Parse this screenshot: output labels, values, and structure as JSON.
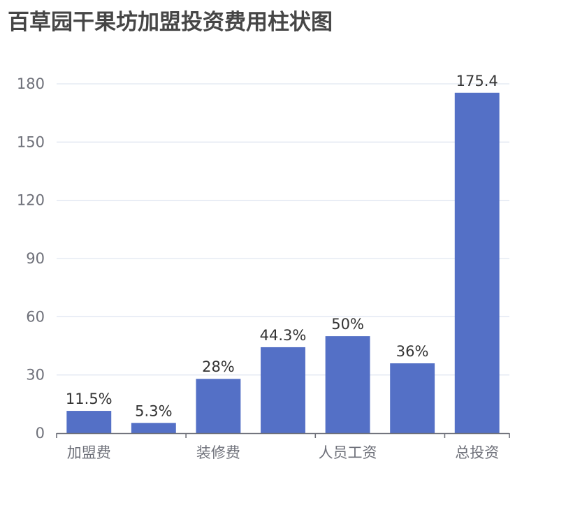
{
  "title": "百草园干果坊加盟投资费用柱状图",
  "colors": {
    "bar": "#5470c6",
    "grid": "#e0e6f1",
    "axis": "#6e7079",
    "title": "#464646",
    "label": "#333333"
  },
  "chart_data": {
    "type": "bar",
    "title": "百草园干果坊加盟投资费用柱状图",
    "xlabel": "",
    "ylabel": "",
    "categories": [
      "加盟费",
      "",
      "装修费",
      "",
      "人员工资",
      "",
      "总投资"
    ],
    "visible_x_labels": [
      "加盟费",
      "装修费",
      "人员工资",
      "总投资"
    ],
    "values": [
      11.5,
      5.3,
      28,
      44.3,
      50,
      36,
      175.4
    ],
    "data_labels": [
      "11.5%",
      "5.3%",
      "28%",
      "44.3%",
      "50%",
      "36%",
      "175.4"
    ],
    "y_ticks": [
      0,
      30,
      60,
      90,
      120,
      150,
      180
    ],
    "ylim": [
      0,
      180
    ],
    "grid": true,
    "legend": null
  }
}
